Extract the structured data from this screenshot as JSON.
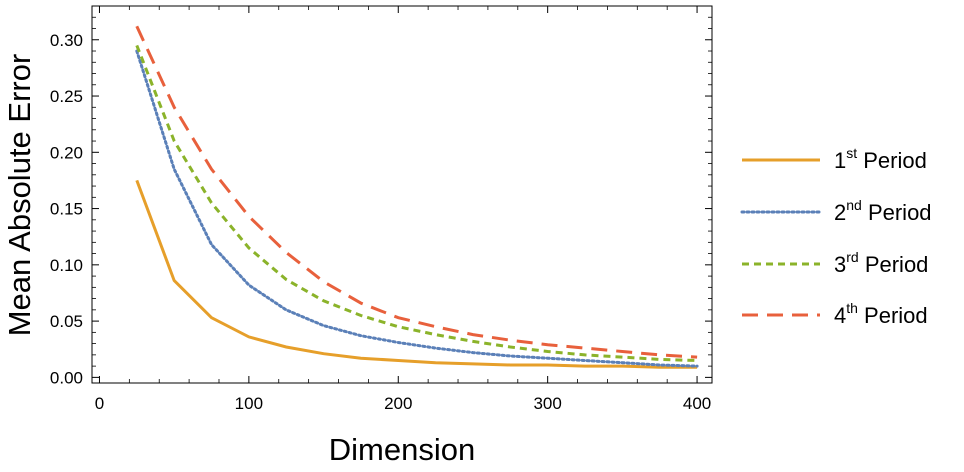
{
  "chart_data": {
    "type": "line",
    "xlabel": "Dimension",
    "ylabel": "Mean Absolute Error",
    "xlim": [
      -5,
      410
    ],
    "ylim": [
      -0.005,
      0.33
    ],
    "x_ticks": [
      0,
      100,
      200,
      300,
      400
    ],
    "x_tick_labels": [
      "0",
      "100",
      "200",
      "300",
      "400"
    ],
    "y_ticks": [
      0.0,
      0.05,
      0.1,
      0.15,
      0.2,
      0.25,
      0.3
    ],
    "y_tick_labels": [
      "0.00",
      "0.05",
      "0.10",
      "0.15",
      "0.20",
      "0.25",
      "0.30"
    ],
    "legend_position": "right",
    "grid": false,
    "series": [
      {
        "key": "s1",
        "ordinal": "1",
        "superscript": "st",
        "label": "Period",
        "color": "#e69f2a",
        "style": "solid",
        "x": [
          25,
          50,
          75,
          100,
          125,
          150,
          175,
          200,
          225,
          250,
          275,
          300,
          325,
          350,
          375,
          400
        ],
        "y": [
          0.175,
          0.086,
          0.053,
          0.036,
          0.027,
          0.021,
          0.017,
          0.015,
          0.013,
          0.012,
          0.011,
          0.011,
          0.01,
          0.01,
          0.009,
          0.009
        ]
      },
      {
        "key": "s2",
        "ordinal": "2",
        "superscript": "nd",
        "label": "Period",
        "color": "#5b80b8",
        "style": "dotted",
        "x": [
          25,
          50,
          75,
          100,
          125,
          150,
          175,
          200,
          225,
          250,
          275,
          300,
          325,
          350,
          375,
          400
        ],
        "y": [
          0.29,
          0.185,
          0.118,
          0.082,
          0.06,
          0.046,
          0.037,
          0.031,
          0.026,
          0.022,
          0.019,
          0.017,
          0.015,
          0.013,
          0.011,
          0.01
        ]
      },
      {
        "key": "s3",
        "ordinal": "3",
        "superscript": "rd",
        "label": "Period",
        "color": "#8bb32a",
        "style": "short-dash",
        "x": [
          25,
          50,
          75,
          100,
          125,
          150,
          175,
          200,
          225,
          250,
          275,
          300,
          325,
          350,
          375,
          400
        ],
        "y": [
          0.295,
          0.21,
          0.155,
          0.115,
          0.087,
          0.068,
          0.055,
          0.045,
          0.038,
          0.032,
          0.027,
          0.023,
          0.02,
          0.018,
          0.016,
          0.015
        ]
      },
      {
        "key": "s4",
        "ordinal": "4",
        "superscript": "th",
        "label": "Period",
        "color": "#e8603c",
        "style": "long-dash",
        "x": [
          25,
          50,
          75,
          100,
          125,
          150,
          175,
          200,
          225,
          250,
          275,
          300,
          325,
          350,
          375,
          400
        ],
        "y": [
          0.312,
          0.24,
          0.185,
          0.143,
          0.111,
          0.085,
          0.066,
          0.053,
          0.045,
          0.038,
          0.033,
          0.029,
          0.026,
          0.023,
          0.02,
          0.018
        ]
      }
    ]
  }
}
